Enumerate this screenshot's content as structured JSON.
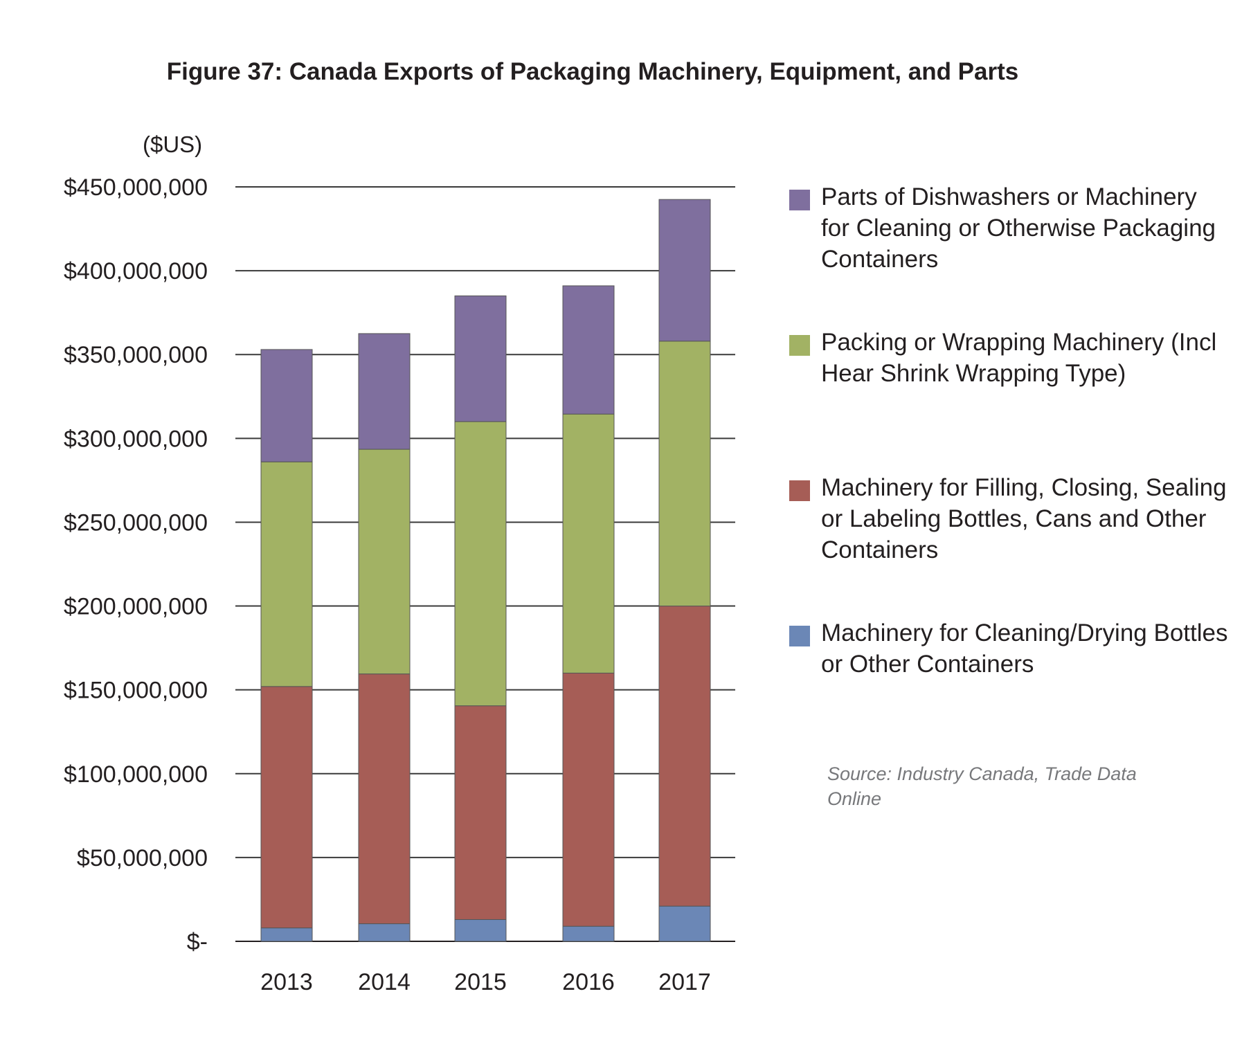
{
  "chart_data": {
    "type": "bar",
    "stacked": true,
    "title": "Figure 37: Canada Exports of Packaging Machinery, Equipment, and Parts",
    "ylabel": "($US)",
    "categories": [
      "2013",
      "2014",
      "2015",
      "2016",
      "2017"
    ],
    "ylim": [
      0,
      450000000
    ],
    "yticks": [
      0,
      50000000,
      100000000,
      150000000,
      200000000,
      250000000,
      300000000,
      350000000,
      400000000,
      450000000
    ],
    "ytick_labels": [
      "$-",
      "$50,000,000",
      "$100,000,000",
      "$150,000,000",
      "$200,000,000",
      "$250,000,000",
      "$300,000,000",
      "$350,000,000",
      "$400,000,000",
      "$450,000,000"
    ],
    "grid": true,
    "legend_position": "right",
    "series": [
      {
        "name": "Machinery for Cleaning/Drying Bottles or Other Containers",
        "color": "#6b87b6",
        "values": [
          8000000,
          10500000,
          13000000,
          9000000,
          21000000
        ]
      },
      {
        "name": "Machinery for Filling, Closing, Sealing or Labeling Bottles, Cans and Other Containers",
        "color": "#a65d56",
        "values": [
          144000000,
          149000000,
          127500000,
          151000000,
          179000000
        ]
      },
      {
        "name": "Packing or Wrapping Machinery (Incl Hear Shrink Wrapping Type)",
        "color": "#a2b264",
        "values": [
          134000000,
          134000000,
          169500000,
          154500000,
          158000000
        ]
      },
      {
        "name": "Parts of Dishwashers or Machinery for Cleaning or Otherwise Packaging Containers",
        "color": "#7f6f9e",
        "values": [
          67000000,
          69000000,
          75000000,
          76500000,
          84500000
        ]
      }
    ],
    "source": "Source: Industry Canada, Trade Data Online"
  }
}
